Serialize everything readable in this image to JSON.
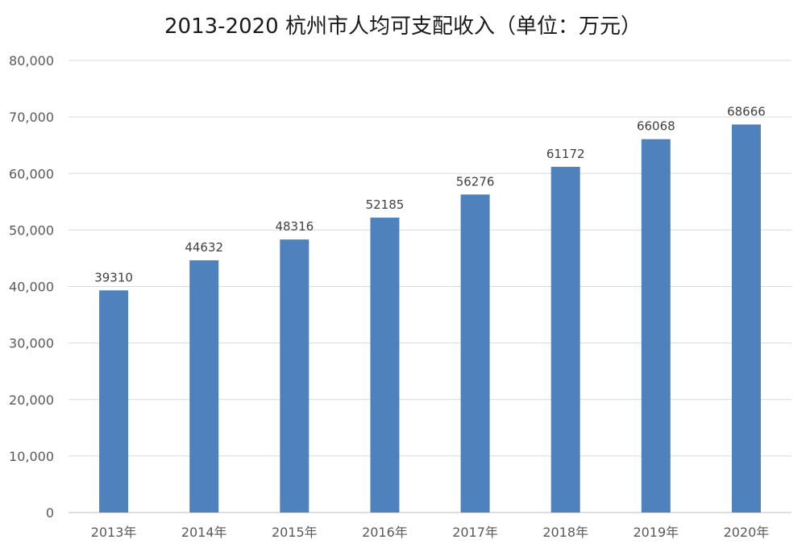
{
  "chart_data": {
    "type": "bar",
    "title": "2013-2020 杭州市人均可支配收入（单位：万元）",
    "categories": [
      "2013年",
      "2014年",
      "2015年",
      "2016年",
      "2017年",
      "2018年",
      "2019年",
      "2020年"
    ],
    "values": [
      39310,
      44632,
      48316,
      52185,
      56276,
      61172,
      66068,
      68666
    ],
    "data_labels": [
      "39310",
      "44632",
      "48316",
      "52185",
      "56276",
      "61172",
      "66068",
      "68666"
    ],
    "y_ticks": [
      0,
      10000,
      20000,
      30000,
      40000,
      50000,
      60000,
      70000,
      80000
    ],
    "y_tick_labels": [
      "0",
      "10,000",
      "20,000",
      "30,000",
      "40,000",
      "50,000",
      "60,000",
      "70,000",
      "80,000"
    ],
    "ylim": [
      0,
      80000
    ],
    "xlabel": "",
    "ylabel": "",
    "grid": true,
    "legend": "none",
    "colors": {
      "bar": "#4f81bd"
    }
  }
}
